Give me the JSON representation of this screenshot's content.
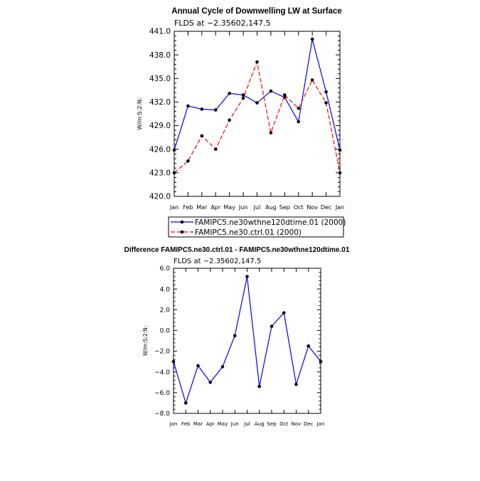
{
  "chart_data": [
    {
      "type": "line",
      "title": "Annual Cycle of Downwelling LW at Surface",
      "subtitle": "FLDS at −2.35602,147.5",
      "ylabel": "W/m:S:2:N:",
      "xlabel": "",
      "categories": [
        "Jan",
        "Feb",
        "Mar",
        "Apr",
        "May",
        "Jun",
        "Jul",
        "Aug",
        "Sep",
        "Oct",
        "Nov",
        "Dec",
        "Jan"
      ],
      "ylim": [
        420.0,
        441.0
      ],
      "yticks": [
        "420.0",
        "423.0",
        "426.0",
        "429.0",
        "432.0",
        "435.0",
        "438.0",
        "441.0"
      ],
      "legend_position": "bottom",
      "series": [
        {
          "name": "FAMIPC5.ne30wthne120dtime.01 (2000)",
          "color": "#0000ff",
          "dash": "solid",
          "values": [
            425.9,
            431.5,
            431.1,
            431.0,
            433.1,
            432.9,
            431.9,
            433.4,
            432.6,
            429.5,
            440.0,
            433.3,
            425.9
          ]
        },
        {
          "name": "FAMIPC5.ne30.ctrl.01 (2000)",
          "color": "#ff0000",
          "dash": "dashed",
          "values": [
            423.0,
            424.5,
            427.7,
            426.0,
            429.7,
            432.5,
            437.1,
            428.1,
            432.9,
            431.2,
            434.8,
            431.9,
            423.0
          ]
        }
      ]
    },
    {
      "type": "line",
      "title": "Difference FAMIPC5.ne30.ctrl.01 - FAMIPC5.ne30wthne120dtime.01",
      "subtitle": "FLDS at −2.35602,147.5",
      "ylabel": "W/m:S:2:N:",
      "xlabel": "",
      "categories": [
        "Jan",
        "Feb",
        "Mar",
        "Apr",
        "May",
        "Jun",
        "Jul",
        "Aug",
        "Sep",
        "Oct",
        "Nov",
        "Dec",
        "Jan"
      ],
      "ylim": [
        -8.0,
        6.0
      ],
      "yticks": [
        "−8.0",
        "−6.0",
        "−4.0",
        "−2.0",
        "0.0",
        "2.0",
        "4.0",
        "6.0"
      ],
      "series": [
        {
          "name": "Difference",
          "color": "#0000ff",
          "dash": "solid",
          "values": [
            -3.0,
            -7.0,
            -3.4,
            -5.0,
            -3.5,
            -0.5,
            5.2,
            -5.4,
            0.4,
            1.7,
            -5.2,
            -1.5,
            -3.0
          ]
        }
      ]
    }
  ]
}
